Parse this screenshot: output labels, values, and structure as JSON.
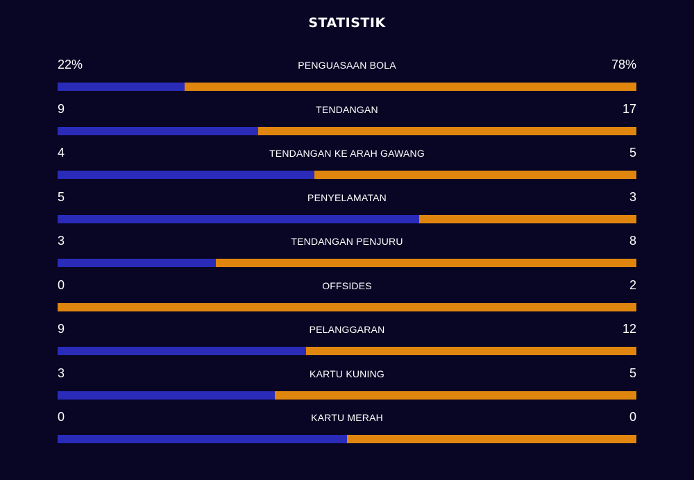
{
  "title": "STATISTIK",
  "colors": {
    "background": "#080624",
    "home": "#2a2bb8",
    "away": "#e0860f"
  },
  "stats": [
    {
      "label": "PENGUASAAN BOLA",
      "home": "22%",
      "away": "78%",
      "home_share": 0.22
    },
    {
      "label": "TENDANGAN",
      "home": "9",
      "away": "17",
      "home_share": 0.346
    },
    {
      "label": "TENDANGAN KE ARAH GAWANG",
      "home": "4",
      "away": "5",
      "home_share": 0.444
    },
    {
      "label": "PENYELAMATAN",
      "home": "5",
      "away": "3",
      "home_share": 0.625
    },
    {
      "label": "TENDANGAN PENJURU",
      "home": "3",
      "away": "8",
      "home_share": 0.273
    },
    {
      "label": "OFFSIDES",
      "home": "0",
      "away": "2",
      "home_share": 0.0
    },
    {
      "label": "PELANGGARAN",
      "home": "9",
      "away": "12",
      "home_share": 0.429
    },
    {
      "label": "KARTU KUNING",
      "home": "3",
      "away": "5",
      "home_share": 0.375
    },
    {
      "label": "KARTU MERAH",
      "home": "0",
      "away": "0",
      "home_share": 0.5
    }
  ]
}
